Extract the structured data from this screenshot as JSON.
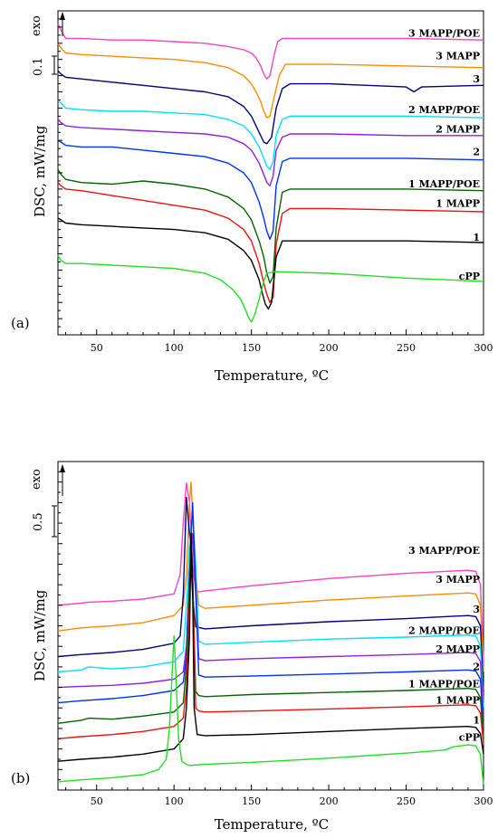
{
  "chart_data": [
    {
      "type": "line",
      "panel": "(a)",
      "xlabel": "Temperature, ºC",
      "ylabel": "DSC, mW/mg",
      "exo_label": "exo",
      "scale_bar_label": "0.1",
      "scale_bar_value": 0.1,
      "xlim": [
        25,
        300
      ],
      "x_ticks": [
        50,
        100,
        150,
        200,
        250,
        300
      ],
      "series": [
        {
          "name": "3 MAPP/POE",
          "color": "#ff40c0",
          "label_y": 0.34,
          "tail_y": 0.32,
          "x": [
            25,
            27,
            30,
            40,
            60,
            80,
            100,
            120,
            135,
            145,
            150,
            153,
            156,
            158,
            160,
            162,
            165,
            167,
            170,
            200,
            250,
            300
          ],
          "y": [
            0.42,
            0.38,
            0.33,
            0.33,
            0.32,
            0.32,
            0.31,
            0.3,
            0.28,
            0.26,
            0.24,
            0.21,
            0.16,
            0.11,
            0.08,
            0.1,
            0.24,
            0.31,
            0.33,
            0.33,
            0.33,
            0.32
          ]
        },
        {
          "name": "3 MAPP",
          "color": "#ff8c00",
          "label_y": 0.2,
          "tail_y": 0.18,
          "x": [
            25,
            27,
            30,
            40,
            60,
            80,
            100,
            120,
            135,
            145,
            150,
            153,
            156,
            158,
            160,
            162,
            165,
            168,
            172,
            200,
            250,
            300
          ],
          "y": [
            0.3,
            0.27,
            0.24,
            0.23,
            0.22,
            0.21,
            0.2,
            0.18,
            0.15,
            0.1,
            0.05,
            0.0,
            -0.06,
            -0.12,
            -0.16,
            -0.15,
            -0.02,
            0.1,
            0.17,
            0.17,
            0.16,
            0.15
          ]
        },
        {
          "name": "3",
          "color": "#000080",
          "label_y": 0.06,
          "tail_y": 0.04,
          "x": [
            25,
            27,
            30,
            40,
            60,
            80,
            100,
            120,
            135,
            145,
            150,
            153,
            156,
            158,
            160,
            163,
            166,
            170,
            175,
            200,
            250,
            255,
            260,
            300
          ],
          "y": [
            0.13,
            0.11,
            0.09,
            0.08,
            0.06,
            0.04,
            0.02,
            0.0,
            -0.03,
            -0.09,
            -0.15,
            -0.21,
            -0.27,
            -0.31,
            -0.32,
            -0.28,
            -0.1,
            0.02,
            0.05,
            0.05,
            0.03,
            0.0,
            0.03,
            0.04
          ]
        },
        {
          "name": "2 MAPP/POE",
          "color": "#00e0ff",
          "label_y": -0.13,
          "tail_y": -0.15,
          "x": [
            25,
            27,
            30,
            40,
            60,
            80,
            100,
            120,
            135,
            145,
            150,
            155,
            158,
            160,
            162,
            164,
            166,
            170,
            175,
            200,
            250,
            300
          ],
          "y": [
            -0.05,
            -0.07,
            -0.1,
            -0.11,
            -0.12,
            -0.12,
            -0.13,
            -0.14,
            -0.17,
            -0.21,
            -0.26,
            -0.34,
            -0.41,
            -0.46,
            -0.48,
            -0.43,
            -0.27,
            -0.17,
            -0.15,
            -0.15,
            -0.15,
            -0.16
          ]
        },
        {
          "name": "2 MAPP",
          "color": "#9020e0",
          "label_y": -0.25,
          "tail_y": -0.27,
          "x": [
            25,
            27,
            30,
            40,
            60,
            80,
            100,
            120,
            135,
            145,
            150,
            155,
            158,
            160,
            162,
            164,
            166,
            170,
            175,
            200,
            250,
            300
          ],
          "y": [
            -0.17,
            -0.19,
            -0.21,
            -0.22,
            -0.23,
            -0.24,
            -0.25,
            -0.26,
            -0.28,
            -0.32,
            -0.36,
            -0.44,
            -0.51,
            -0.56,
            -0.58,
            -0.52,
            -0.36,
            -0.28,
            -0.26,
            -0.26,
            -0.27,
            -0.27
          ]
        },
        {
          "name": "2",
          "color": "#0030ff",
          "label_y": -0.39,
          "tail_y": -0.41,
          "x": [
            25,
            27,
            30,
            40,
            60,
            80,
            100,
            120,
            135,
            145,
            150,
            155,
            158,
            160,
            162,
            164,
            166,
            170,
            175,
            200,
            250,
            300
          ],
          "y": [
            -0.3,
            -0.31,
            -0.33,
            -0.34,
            -0.34,
            -0.36,
            -0.38,
            -0.4,
            -0.44,
            -0.5,
            -0.56,
            -0.68,
            -0.78,
            -0.86,
            -0.91,
            -0.86,
            -0.58,
            -0.43,
            -0.41,
            -0.41,
            -0.41,
            -0.42
          ]
        },
        {
          "name": "1 MAPP/POE",
          "color": "#006400",
          "label_y": -0.59,
          "tail_y": -0.61,
          "x": [
            25,
            27,
            30,
            40,
            60,
            80,
            100,
            120,
            135,
            145,
            150,
            155,
            158,
            160,
            162,
            164,
            166,
            170,
            175,
            200,
            250,
            300
          ],
          "y": [
            -0.48,
            -0.51,
            -0.54,
            -0.56,
            -0.57,
            -0.55,
            -0.57,
            -0.6,
            -0.65,
            -0.72,
            -0.79,
            -0.92,
            -1.02,
            -1.12,
            -1.18,
            -1.14,
            -0.84,
            -0.62,
            -0.6,
            -0.6,
            -0.6,
            -0.61
          ]
        },
        {
          "name": "1 MAPP",
          "color": "#ee1010",
          "label_y": -0.71,
          "tail_y": -0.73,
          "x": [
            25,
            27,
            30,
            40,
            60,
            80,
            100,
            120,
            135,
            145,
            150,
            155,
            158,
            160,
            162,
            164,
            166,
            170,
            175,
            200,
            250,
            300
          ],
          "y": [
            -0.56,
            -0.58,
            -0.6,
            -0.61,
            -0.64,
            -0.67,
            -0.7,
            -0.73,
            -0.78,
            -0.85,
            -0.92,
            -1.06,
            -1.18,
            -1.25,
            -1.3,
            -1.27,
            -0.94,
            -0.75,
            -0.72,
            -0.72,
            -0.73,
            -0.74
          ]
        },
        {
          "name": "1",
          "color": "#000000",
          "label_y": -0.92,
          "tail_y": -0.94,
          "x": [
            25,
            27,
            30,
            40,
            60,
            80,
            100,
            120,
            135,
            145,
            150,
            155,
            157,
            159,
            161,
            163,
            166,
            170,
            175,
            200,
            250,
            300
          ],
          "y": [
            -0.78,
            -0.79,
            -0.81,
            -0.82,
            -0.83,
            -0.84,
            -0.85,
            -0.87,
            -0.91,
            -0.98,
            -1.04,
            -1.16,
            -1.24,
            -1.31,
            -1.34,
            -1.3,
            -1.02,
            -0.92,
            -0.92,
            -0.92,
            -0.92,
            -0.93
          ]
        },
        {
          "name": "cPP",
          "color": "#20e020",
          "label_y": -1.16,
          "tail_y": -1.18,
          "x": [
            25,
            27,
            30,
            40,
            60,
            80,
            100,
            120,
            130,
            138,
            143,
            146,
            148,
            150,
            152,
            155,
            158,
            160,
            165,
            200,
            250,
            300
          ],
          "y": [
            -1.01,
            -1.04,
            -1.06,
            -1.06,
            -1.07,
            -1.08,
            -1.09,
            -1.12,
            -1.16,
            -1.22,
            -1.28,
            -1.34,
            -1.39,
            -1.42,
            -1.38,
            -1.28,
            -1.17,
            -1.12,
            -1.11,
            -1.12,
            -1.15,
            -1.17
          ]
        }
      ]
    },
    {
      "type": "line",
      "panel": "(b)",
      "xlabel": "Temperature, ºC",
      "ylabel": "DSC, mW/mg",
      "exo_label": "exo",
      "scale_bar_label": "0.5",
      "scale_bar_value": 0.5,
      "xlim": [
        25,
        300
      ],
      "x_ticks": [
        50,
        100,
        150,
        200,
        250,
        300
      ],
      "series": [
        {
          "name": "3 MAPP/POE",
          "color": "#ff40c0",
          "label_y": 0.5,
          "tail_y": 0.4,
          "x": [
            25,
            40,
            45,
            60,
            80,
            100,
            104,
            106,
            108,
            110,
            112,
            114,
            116,
            120,
            150,
            200,
            250,
            290,
            295,
            298,
            300
          ],
          "y": [
            0.0,
            0.02,
            0.03,
            0.04,
            0.06,
            0.11,
            0.3,
            0.8,
            1.19,
            1.0,
            0.4,
            0.15,
            0.13,
            0.14,
            0.19,
            0.26,
            0.31,
            0.34,
            0.33,
            0.2,
            -0.55
          ]
        },
        {
          "name": "3 MAPP",
          "color": "#ff8c00",
          "label_y": 0.22,
          "tail_y": 0.15,
          "x": [
            25,
            40,
            60,
            80,
            100,
            106,
            108,
            110,
            111,
            112,
            114,
            116,
            120,
            150,
            200,
            250,
            290,
            295,
            298,
            300
          ],
          "y": [
            -0.25,
            -0.22,
            -0.2,
            -0.17,
            -0.1,
            0.0,
            0.3,
            1.0,
            1.2,
            0.9,
            0.3,
            0.0,
            -0.03,
            0.0,
            0.05,
            0.09,
            0.12,
            0.11,
            0.0,
            -0.65
          ]
        },
        {
          "name": "3",
          "color": "#000080",
          "label_y": -0.07,
          "tail_y": -0.09,
          "x": [
            25,
            40,
            60,
            80,
            100,
            104,
            106,
            108,
            110,
            112,
            114,
            120,
            150,
            200,
            250,
            290,
            295,
            298,
            300
          ],
          "y": [
            -0.5,
            -0.48,
            -0.46,
            -0.43,
            -0.37,
            -0.3,
            0.1,
            1.05,
            0.7,
            0.1,
            -0.21,
            -0.23,
            -0.2,
            -0.16,
            -0.13,
            -0.1,
            -0.11,
            -0.2,
            -0.85
          ]
        },
        {
          "name": "2 MAPP/POE",
          "color": "#00e0ff",
          "label_y": -0.28,
          "tail_y": -0.32,
          "x": [
            25,
            40,
            45,
            60,
            80,
            100,
            106,
            108,
            110,
            112,
            114,
            116,
            120,
            150,
            200,
            250,
            290,
            295,
            298,
            300
          ],
          "y": [
            -0.65,
            -0.63,
            -0.6,
            -0.62,
            -0.6,
            -0.55,
            -0.45,
            0.0,
            0.6,
            0.9,
            0.4,
            -0.35,
            -0.38,
            -0.36,
            -0.33,
            -0.31,
            -0.29,
            -0.3,
            -0.4,
            -1.0
          ]
        },
        {
          "name": "2 MAPP",
          "color": "#9020e0",
          "label_y": -0.46,
          "tail_y": -0.5,
          "x": [
            25,
            40,
            60,
            80,
            100,
            106,
            108,
            110,
            112,
            114,
            116,
            120,
            150,
            200,
            250,
            290,
            295,
            298,
            300
          ],
          "y": [
            -0.8,
            -0.79,
            -0.78,
            -0.76,
            -0.72,
            -0.65,
            -0.4,
            0.3,
            0.7,
            0.1,
            -0.52,
            -0.54,
            -0.52,
            -0.5,
            -0.48,
            -0.46,
            -0.47,
            -0.55,
            -1.1
          ]
        },
        {
          "name": "2",
          "color": "#0030ff",
          "label_y": -0.63,
          "tail_y": -0.67,
          "x": [
            25,
            40,
            60,
            80,
            100,
            106,
            108,
            110,
            112,
            114,
            116,
            120,
            150,
            200,
            250,
            290,
            295,
            298,
            300
          ],
          "y": [
            -0.95,
            -0.93,
            -0.91,
            -0.88,
            -0.83,
            -0.75,
            -0.5,
            0.3,
            1.0,
            0.2,
            -0.68,
            -0.7,
            -0.69,
            -0.67,
            -0.65,
            -0.63,
            -0.64,
            -0.72,
            -1.2
          ]
        },
        {
          "name": "1 MAPP/POE",
          "color": "#006400",
          "label_y": -0.8,
          "tail_y": -0.85,
          "x": [
            25,
            40,
            45,
            60,
            80,
            100,
            106,
            108,
            110,
            111,
            112,
            114,
            116,
            120,
            150,
            200,
            250,
            290,
            295,
            298,
            300
          ],
          "y": [
            -1.15,
            -1.12,
            -1.1,
            -1.11,
            -1.08,
            -1.04,
            -0.95,
            -0.6,
            0.2,
            0.7,
            0.3,
            -0.84,
            -0.88,
            -0.89,
            -0.87,
            -0.85,
            -0.83,
            -0.81,
            -0.82,
            -0.9,
            -1.3
          ]
        },
        {
          "name": "1 MAPP",
          "color": "#ee1010",
          "label_y": -0.96,
          "tail_y": -1.0,
          "x": [
            25,
            40,
            60,
            80,
            100,
            106,
            108,
            110,
            111,
            112,
            114,
            116,
            120,
            150,
            200,
            250,
            290,
            295,
            298,
            300
          ],
          "y": [
            -1.3,
            -1.28,
            -1.26,
            -1.23,
            -1.18,
            -1.1,
            -0.8,
            0.0,
            0.6,
            0.3,
            -1.0,
            -1.03,
            -1.04,
            -1.03,
            -1.01,
            -0.99,
            -0.97,
            -0.98,
            -1.05,
            -1.35
          ]
        },
        {
          "name": "1",
          "color": "#000000",
          "label_y": -1.15,
          "tail_y": -1.17,
          "x": [
            25,
            40,
            60,
            80,
            100,
            106,
            108,
            110,
            111,
            112,
            113,
            115,
            120,
            150,
            200,
            250,
            290,
            295,
            298,
            300
          ],
          "y": [
            -1.52,
            -1.5,
            -1.48,
            -1.45,
            -1.4,
            -1.3,
            -1.0,
            -0.3,
            0.7,
            0.2,
            -1.0,
            -1.26,
            -1.27,
            -1.26,
            -1.23,
            -1.2,
            -1.18,
            -1.19,
            -1.25,
            -1.45
          ]
        },
        {
          "name": "cPP",
          "color": "#20e020",
          "label_y": -1.32,
          "tail_y": -1.38,
          "x": [
            25,
            40,
            60,
            80,
            90,
            95,
            97,
            99,
            100,
            101,
            103,
            105,
            108,
            110,
            120,
            150,
            200,
            250,
            275,
            280,
            285,
            290,
            295,
            298,
            300
          ],
          "y": [
            -1.72,
            -1.7,
            -1.68,
            -1.65,
            -1.6,
            -1.5,
            -1.2,
            -0.6,
            -0.3,
            -0.6,
            -1.3,
            -1.52,
            -1.55,
            -1.56,
            -1.55,
            -1.53,
            -1.49,
            -1.44,
            -1.41,
            -1.38,
            -1.37,
            -1.36,
            -1.37,
            -1.45,
            -1.75
          ]
        }
      ]
    }
  ]
}
